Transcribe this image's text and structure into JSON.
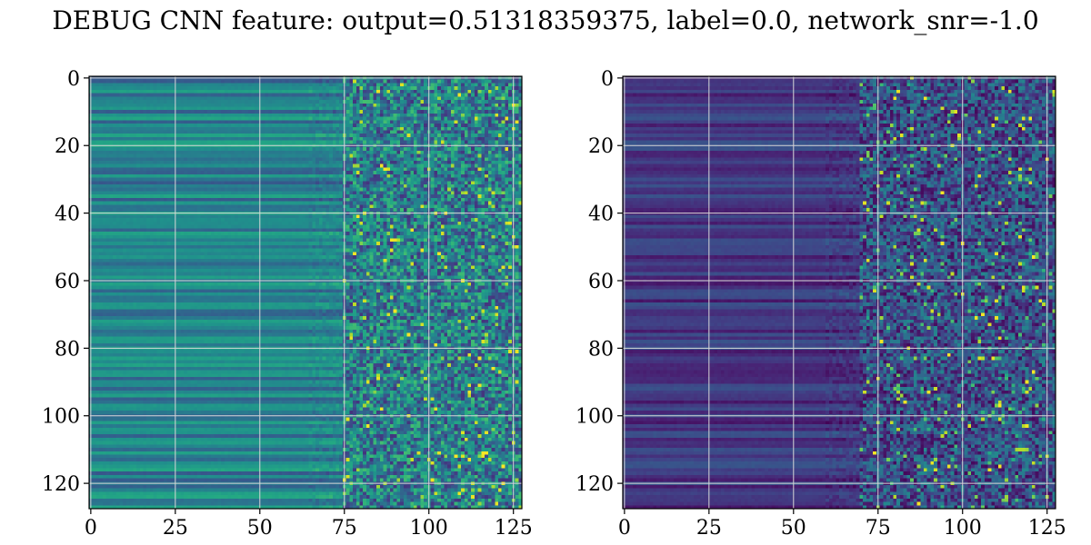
{
  "figure": {
    "title": "DEBUG CNN feature: output=0.51318359375, label=0.0, network_snr=-1.0"
  },
  "chart_data": [
    {
      "type": "heatmap",
      "name": "left-feature-map",
      "colormap": "viridis",
      "rows": 128,
      "cols": 128,
      "xlim": [
        0,
        127
      ],
      "ylim": [
        127,
        0
      ],
      "x_ticks": [
        0,
        25,
        50,
        75,
        100,
        125
      ],
      "y_ticks": [
        0,
        20,
        40,
        60,
        80,
        100,
        120
      ],
      "grid": true,
      "description_values": {
        "low_col_band_intensity": 0.35,
        "high_col_band_intensity": 0.55,
        "noise_start_col": 75
      }
    },
    {
      "type": "heatmap",
      "name": "right-feature-map",
      "colormap": "viridis",
      "rows": 128,
      "cols": 128,
      "xlim": [
        0,
        127
      ],
      "ylim": [
        127,
        0
      ],
      "x_ticks": [
        0,
        25,
        50,
        75,
        100,
        125
      ],
      "y_ticks": [
        0,
        20,
        40,
        60,
        80,
        100,
        120
      ],
      "grid": true,
      "description_values": {
        "low_col_band_intensity": 0.12,
        "high_col_band_intensity": 0.2,
        "noise_start_col": 70
      }
    }
  ]
}
